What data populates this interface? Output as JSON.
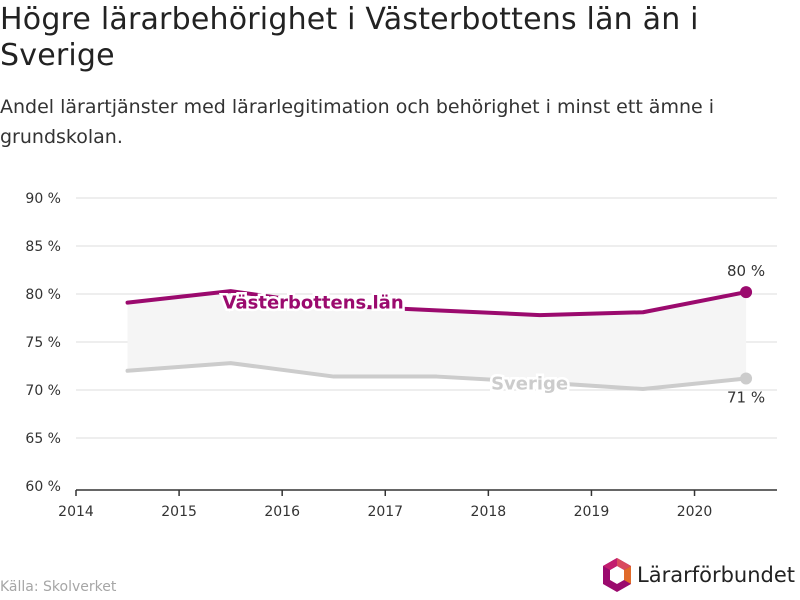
{
  "title": "Högre lärarbehörighet i Västerbottens län än i Sverige",
  "subtitle": "Andel lärartjänster med lärarlegitimation och behörighet i minst ett ämne i grundskolan.",
  "source": "Källa: Skolverket",
  "logo": {
    "text": "Lärarförbundet",
    "icon": "lararforbundet-logo-icon"
  },
  "colors": {
    "primary": "#9b0a6e",
    "secondary": "#cccccc",
    "band": "#f5f5f5",
    "grid": "#dddddd"
  },
  "chart_data": {
    "type": "line",
    "x": [
      2014.5,
      2015.5,
      2016.5,
      2017.5,
      2018.5,
      2019.5,
      2020.5
    ],
    "xticks": [
      "2014",
      "2015",
      "2016",
      "2017",
      "2018",
      "2019",
      "2020"
    ],
    "xlim": [
      2014,
      2020.8
    ],
    "ylim": [
      60,
      90
    ],
    "yticks": [
      "60 %",
      "65 %",
      "70 %",
      "75 %",
      "80 %",
      "85 %",
      "90 %"
    ],
    "grid": true,
    "series": [
      {
        "name": "Västerbottens län",
        "values": [
          79.1,
          80.3,
          78.8,
          78.3,
          77.8,
          78.1,
          80.2
        ],
        "end_label": "80 %"
      },
      {
        "name": "Sverige",
        "values": [
          72.0,
          72.8,
          71.4,
          71.4,
          70.8,
          70.1,
          71.2
        ],
        "end_label": "71 %"
      }
    ]
  }
}
